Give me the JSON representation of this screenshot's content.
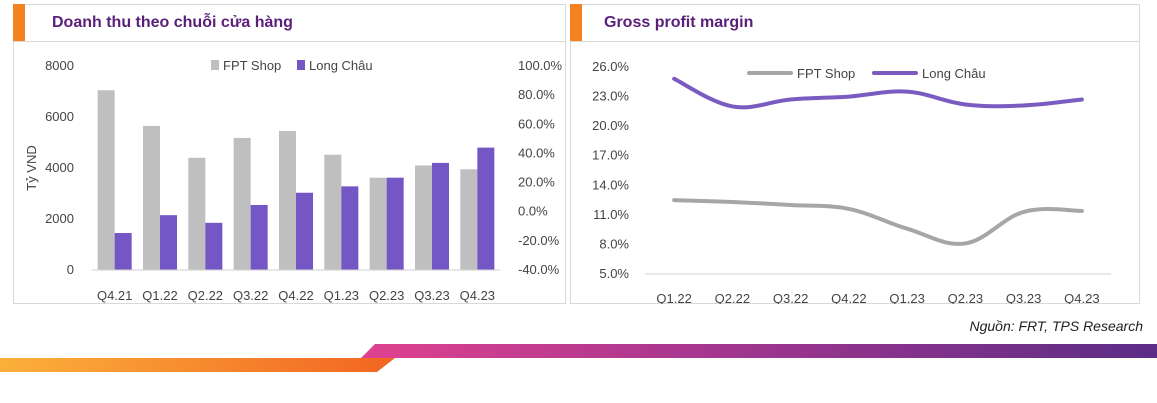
{
  "source_note": "Nguồn: FRT, TPS Research",
  "colors": {
    "fpt": "#bfbfbf",
    "longchau": "#7456c4",
    "longchau_line": "#7a5cc0",
    "fpt_line": "#a6a6a6",
    "title": "#5a1f7a",
    "accent": "#f58220"
  },
  "chart_data": [
    {
      "type": "bar",
      "title": "Doanh thu theo chuỗi cửa hàng",
      "ylabel": "Tỷ VND",
      "categories": [
        "Q4.21",
        "Q1.22",
        "Q2.22",
        "Q3.22",
        "Q4.22",
        "Q1.23",
        "Q2.23",
        "Q3.23",
        "Q4.23"
      ],
      "series": [
        {
          "name": "FPT Shop",
          "values": [
            7050,
            5650,
            4400,
            5180,
            5450,
            4520,
            3620,
            4100,
            3950
          ]
        },
        {
          "name": "Long Châu",
          "values": [
            1450,
            2150,
            1850,
            2550,
            3030,
            3280,
            3620,
            4200,
            4800
          ]
        }
      ],
      "ylim": [
        0,
        8000
      ],
      "yticks": [
        "8000",
        "6000",
        "4000",
        "2000",
        "0"
      ],
      "y2ticks": [
        "100.0%",
        "80.0%",
        "60.0%",
        "40.0%",
        "20.0%",
        "0.0%",
        "-20.0%",
        "-40.0%"
      ],
      "legend": "top"
    },
    {
      "type": "line",
      "title": "Gross profit margin",
      "categories": [
        "Q1.22",
        "Q2.22",
        "Q3.22",
        "Q4.22",
        "Q1.23",
        "Q2.23",
        "Q3.23",
        "Q4.23"
      ],
      "series": [
        {
          "name": "FPT Shop",
          "values": [
            12.5,
            12.3,
            12.0,
            11.6,
            9.6,
            8.1,
            11.3,
            11.4
          ]
        },
        {
          "name": "Long Châu",
          "values": [
            24.8,
            22.0,
            22.7,
            23.0,
            23.5,
            22.2,
            22.1,
            22.7
          ]
        }
      ],
      "ylim": [
        5,
        26
      ],
      "yticks": [
        "26.0%",
        "23.0%",
        "20.0%",
        "17.0%",
        "14.0%",
        "11.0%",
        "8.0%",
        "5.0%"
      ],
      "legend": "top"
    }
  ]
}
